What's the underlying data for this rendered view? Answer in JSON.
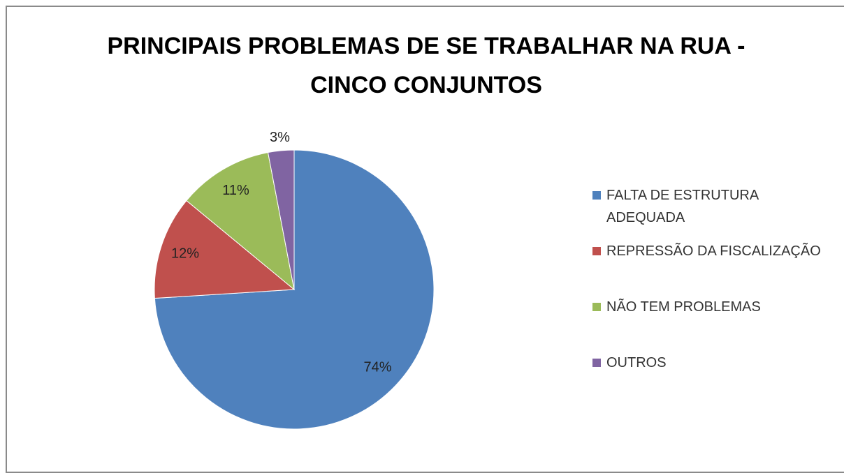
{
  "chart_data": {
    "type": "pie",
    "title": "PRINCIPAIS PROBLEMAS DE SE TRABALHAR NA RUA - CINCO CONJUNTOS",
    "categories": [
      "FALTA DE ESTRUTURA ADEQUADA",
      "REPRESSÃO DA FISCALIZAÇÃO",
      "NÃO TEM PROBLEMAS",
      "OUTROS"
    ],
    "values": [
      74,
      12,
      11,
      3
    ],
    "value_labels": [
      "74%",
      "12%",
      "11%",
      "3%"
    ],
    "colors": [
      "#4f81bd",
      "#c0504d",
      "#9bbb59",
      "#8064a2"
    ],
    "legend": "right"
  }
}
